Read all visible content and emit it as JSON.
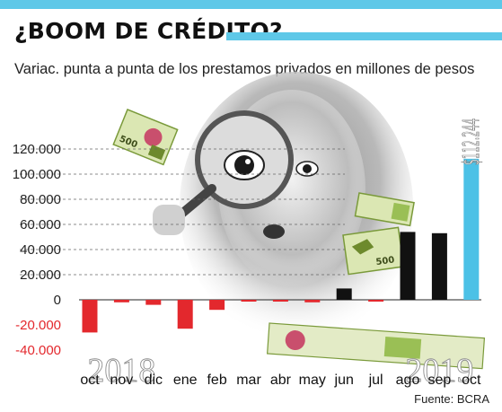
{
  "header": {
    "title": "¿BOOM DE CRÉDITO?",
    "subtitle": "Variac. punta a punta de los prestamos privados en millones de pesos"
  },
  "source": "Fuente: BCRA",
  "colors": {
    "accent": "#5ec8e8",
    "negative": "#e3282d",
    "positive": "#111111",
    "highlight": "#4cc1e6"
  },
  "illustration": {
    "description_icons": [
      "woman-with-magnifying-glass-photo",
      "banknote-icon"
    ],
    "banknote_label": "500"
  },
  "chart_data": {
    "type": "bar",
    "title": "",
    "xlabel": "",
    "ylabel": "",
    "ylim": [
      -40000,
      120000
    ],
    "yticks": [
      120000,
      100000,
      80000,
      60000,
      40000,
      20000,
      0,
      -20000,
      -40000
    ],
    "ytick_labels": [
      "120.000",
      "100.000",
      "80.000",
      "60.000",
      "40.000",
      "20.000",
      "0",
      "-20.000",
      "-40.000"
    ],
    "categories": [
      "oct",
      "nov",
      "dic",
      "ene",
      "feb",
      "mar",
      "abr",
      "may",
      "jun",
      "jul",
      "ago",
      "sep",
      "oct"
    ],
    "values": [
      -26000,
      -2000,
      -4000,
      -23000,
      -8000,
      -1000,
      -1000,
      -2000,
      9000,
      -1000,
      54000,
      53000,
      112244
    ],
    "year_labels": [
      {
        "text": "2018",
        "category_index": 1
      },
      {
        "text": "2019",
        "category_index": 11
      }
    ],
    "annotations": [
      {
        "text": "$112.244",
        "category_index": 12
      }
    ],
    "grid": true,
    "legend": "none"
  }
}
